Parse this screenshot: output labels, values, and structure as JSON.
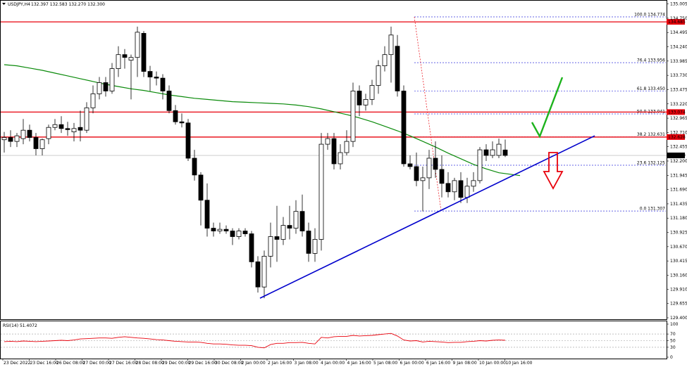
{
  "chart_data": {
    "type": "candlestick",
    "title": "USDJPY,H4 132.397 132.583 132.270 132.300",
    "symbol_header": "USDJPY,H4",
    "ohlc_header": "132.397 132.583 132.270 132.300",
    "price_axis": {
      "range": [
        129.4,
        135.0
      ],
      "ticks": [
        "135.005",
        "134.750",
        "134.495",
        "134.240",
        "133.985",
        "133.730",
        "133.475",
        "133.220",
        "132.965",
        "132.710",
        "132.455",
        "132.200",
        "131.945",
        "131.690",
        "131.435",
        "131.180",
        "130.925",
        "130.670",
        "130.415",
        "130.160",
        "129.910",
        "129.655",
        "129.400"
      ]
    },
    "x_axis_ticks": [
      "23 Dec 2022",
      "23 Dec 16:00",
      "26 Dec 08:00",
      "27 Dec 00:00",
      "27 Dec 16:00",
      "28 Dec 08:00",
      "29 Dec 00:00",
      "29 Dec 16:00",
      "30 Dec 08:00",
      "2 Jan 00:00",
      "2 Jan 16:00",
      "3 Jan 08:00",
      "4 Jan 00:00",
      "4 Jan 16:00",
      "5 Jan 08:00",
      "6 Jan 00:00",
      "6 Jan 16:00",
      "9 Jan 08:00",
      "10 Jan 00:00",
      "10 Jan 16:00"
    ],
    "current_price": "132.300",
    "candles": [
      {
        "o": 132.58,
        "h": 132.72,
        "l": 132.35,
        "c": 132.62
      },
      {
        "o": 132.62,
        "h": 132.75,
        "l": 132.45,
        "c": 132.55
      },
      {
        "o": 132.55,
        "h": 132.7,
        "l": 132.45,
        "c": 132.65
      },
      {
        "o": 132.6,
        "h": 132.95,
        "l": 132.5,
        "c": 132.75
      },
      {
        "o": 132.75,
        "h": 132.85,
        "l": 132.55,
        "c": 132.62
      },
      {
        "o": 132.62,
        "h": 132.7,
        "l": 132.3,
        "c": 132.42
      },
      {
        "o": 132.42,
        "h": 132.6,
        "l": 132.3,
        "c": 132.58
      },
      {
        "o": 132.6,
        "h": 132.85,
        "l": 132.5,
        "c": 132.8
      },
      {
        "o": 132.8,
        "h": 132.95,
        "l": 132.75,
        "c": 132.85
      },
      {
        "o": 132.85,
        "h": 133.0,
        "l": 132.7,
        "c": 132.78
      },
      {
        "o": 132.78,
        "h": 132.9,
        "l": 132.65,
        "c": 132.76
      },
      {
        "o": 132.72,
        "h": 132.88,
        "l": 132.55,
        "c": 132.78
      },
      {
        "o": 132.8,
        "h": 133.1,
        "l": 132.55,
        "c": 132.75
      },
      {
        "o": 132.75,
        "h": 133.25,
        "l": 132.7,
        "c": 133.15
      },
      {
        "o": 133.15,
        "h": 133.55,
        "l": 133.05,
        "c": 133.4
      },
      {
        "o": 133.4,
        "h": 133.7,
        "l": 133.3,
        "c": 133.6
      },
      {
        "o": 133.6,
        "h": 133.7,
        "l": 133.35,
        "c": 133.45
      },
      {
        "o": 133.45,
        "h": 133.95,
        "l": 133.4,
        "c": 133.85
      },
      {
        "o": 133.85,
        "h": 134.25,
        "l": 133.7,
        "c": 134.1
      },
      {
        "o": 134.1,
        "h": 134.2,
        "l": 133.85,
        "c": 134.05
      },
      {
        "o": 134.0,
        "h": 134.1,
        "l": 133.3,
        "c": 134.05
      },
      {
        "o": 134.05,
        "h": 134.6,
        "l": 133.7,
        "c": 134.5
      },
      {
        "o": 134.48,
        "h": 134.52,
        "l": 133.7,
        "c": 133.8
      },
      {
        "o": 133.8,
        "h": 133.9,
        "l": 133.45,
        "c": 133.7
      },
      {
        "o": 133.7,
        "h": 133.8,
        "l": 133.55,
        "c": 133.68
      },
      {
        "o": 133.68,
        "h": 133.75,
        "l": 133.3,
        "c": 133.45
      },
      {
        "o": 133.45,
        "h": 133.55,
        "l": 133.05,
        "c": 133.1
      },
      {
        "o": 133.1,
        "h": 133.2,
        "l": 132.85,
        "c": 132.9
      },
      {
        "o": 132.9,
        "h": 133.05,
        "l": 132.8,
        "c": 132.88
      },
      {
        "o": 132.88,
        "h": 132.95,
        "l": 132.2,
        "c": 132.25
      },
      {
        "o": 132.25,
        "h": 132.4,
        "l": 131.85,
        "c": 131.95
      },
      {
        "o": 131.95,
        "h": 132.0,
        "l": 131.05,
        "c": 131.5
      },
      {
        "o": 131.5,
        "h": 131.8,
        "l": 130.85,
        "c": 131.0
      },
      {
        "o": 131.0,
        "h": 131.1,
        "l": 130.85,
        "c": 130.95
      },
      {
        "o": 130.95,
        "h": 131.1,
        "l": 130.9,
        "c": 130.98
      },
      {
        "o": 130.98,
        "h": 131.05,
        "l": 130.9,
        "c": 130.95
      },
      {
        "o": 130.95,
        "h": 131.0,
        "l": 130.7,
        "c": 130.85
      },
      {
        "o": 130.85,
        "h": 131.0,
        "l": 130.8,
        "c": 130.95
      },
      {
        "o": 130.95,
        "h": 131.0,
        "l": 130.85,
        "c": 130.9
      },
      {
        "o": 130.9,
        "h": 130.95,
        "l": 130.3,
        "c": 130.4
      },
      {
        "o": 130.4,
        "h": 130.5,
        "l": 129.85,
        "c": 129.95
      },
      {
        "o": 129.95,
        "h": 130.6,
        "l": 129.75,
        "c": 130.5
      },
      {
        "o": 130.5,
        "h": 131.1,
        "l": 130.3,
        "c": 130.85
      },
      {
        "o": 130.85,
        "h": 131.4,
        "l": 130.4,
        "c": 130.8
      },
      {
        "o": 130.8,
        "h": 131.2,
        "l": 130.7,
        "c": 131.05
      },
      {
        "o": 131.05,
        "h": 131.4,
        "l": 130.8,
        "c": 131.0
      },
      {
        "o": 131.0,
        "h": 131.5,
        "l": 130.9,
        "c": 131.3
      },
      {
        "o": 131.3,
        "h": 131.6,
        "l": 130.85,
        "c": 130.95
      },
      {
        "o": 130.95,
        "h": 131.1,
        "l": 130.4,
        "c": 130.55
      },
      {
        "o": 130.55,
        "h": 131.0,
        "l": 130.4,
        "c": 130.8
      },
      {
        "o": 130.8,
        "h": 132.7,
        "l": 130.6,
        "c": 132.5
      },
      {
        "o": 132.5,
        "h": 132.7,
        "l": 132.4,
        "c": 132.6
      },
      {
        "o": 132.6,
        "h": 132.7,
        "l": 132.05,
        "c": 132.15
      },
      {
        "o": 132.15,
        "h": 132.5,
        "l": 132.05,
        "c": 132.35
      },
      {
        "o": 132.35,
        "h": 132.75,
        "l": 132.3,
        "c": 132.55
      },
      {
        "o": 132.55,
        "h": 133.6,
        "l": 132.45,
        "c": 133.45
      },
      {
        "o": 133.45,
        "h": 133.55,
        "l": 133.0,
        "c": 133.2
      },
      {
        "o": 133.2,
        "h": 133.4,
        "l": 133.1,
        "c": 133.3
      },
      {
        "o": 133.3,
        "h": 133.65,
        "l": 133.2,
        "c": 133.55
      },
      {
        "o": 133.55,
        "h": 134.0,
        "l": 133.4,
        "c": 133.9
      },
      {
        "o": 133.9,
        "h": 134.25,
        "l": 133.8,
        "c": 134.1
      },
      {
        "o": 134.1,
        "h": 134.6,
        "l": 133.6,
        "c": 134.45
      },
      {
        "o": 134.25,
        "h": 134.45,
        "l": 133.35,
        "c": 133.45
      },
      {
        "o": 133.45,
        "h": 133.55,
        "l": 132.1,
        "c": 132.15
      },
      {
        "o": 132.15,
        "h": 132.3,
        "l": 132.05,
        "c": 132.1
      },
      {
        "o": 132.1,
        "h": 132.35,
        "l": 131.75,
        "c": 131.85
      },
      {
        "o": 131.85,
        "h": 132.1,
        "l": 131.3,
        "c": 131.9
      },
      {
        "o": 131.9,
        "h": 132.4,
        "l": 131.7,
        "c": 132.25
      },
      {
        "o": 132.25,
        "h": 132.55,
        "l": 131.9,
        "c": 132.05
      },
      {
        "o": 132.05,
        "h": 132.3,
        "l": 131.55,
        "c": 131.8
      },
      {
        "o": 131.8,
        "h": 132.0,
        "l": 131.55,
        "c": 131.65
      },
      {
        "o": 131.65,
        "h": 131.9,
        "l": 131.5,
        "c": 131.85
      },
      {
        "o": 131.85,
        "h": 132.0,
        "l": 131.45,
        "c": 131.55
      },
      {
        "o": 131.55,
        "h": 131.9,
        "l": 131.45,
        "c": 131.75
      },
      {
        "o": 131.75,
        "h": 132.0,
        "l": 131.65,
        "c": 131.85
      },
      {
        "o": 131.85,
        "h": 132.45,
        "l": 131.8,
        "c": 132.4
      },
      {
        "o": 132.4,
        "h": 132.5,
        "l": 132.2,
        "c": 132.3
      },
      {
        "o": 132.3,
        "h": 132.55,
        "l": 132.25,
        "c": 132.4
      },
      {
        "o": 132.3,
        "h": 132.6,
        "l": 132.25,
        "c": 132.5
      },
      {
        "o": 132.397,
        "h": 132.583,
        "l": 132.27,
        "c": 132.3
      }
    ],
    "moving_average": [
      133.92,
      133.9,
      133.86,
      133.82,
      133.77,
      133.72,
      133.67,
      133.62,
      133.57,
      133.53,
      133.49,
      133.46,
      133.42,
      133.38,
      133.35,
      133.32,
      133.3,
      133.28,
      133.26,
      133.25,
      133.24,
      133.23,
      133.22,
      133.2,
      133.17,
      133.13,
      133.08,
      133.03,
      132.97,
      132.9,
      132.82,
      132.74,
      132.65,
      132.55,
      132.45,
      132.34,
      132.24,
      132.14,
      132.06,
      131.99,
      131.94
    ],
    "horizontal_levels": [
      {
        "price": 134.685,
        "label": "134.685",
        "color": "#e8000b"
      },
      {
        "price": 133.074,
        "label": "133.074",
        "color": "#e8000b"
      },
      {
        "price": 132.628,
        "label": "132.628",
        "color": "#e8000b"
      }
    ],
    "fibonacci_levels": [
      {
        "ratio": "100.0",
        "price": 134.774
      },
      {
        "ratio": "76.4",
        "price": 133.956
      },
      {
        "ratio": "61.8",
        "price": 133.45
      },
      {
        "ratio": "50.0",
        "price": 133.041
      },
      {
        "ratio": "38.2",
        "price": 132.631
      },
      {
        "ratio": "23.6",
        "price": 132.125
      },
      {
        "ratio": "0.0",
        "price": 131.307
      }
    ],
    "trendline": {
      "from": {
        "candle": 41,
        "price": 129.75
      },
      "to": {
        "candle": 94,
        "price": 132.65
      },
      "color": "#0000cc"
    },
    "rsi": {
      "label": "RSI(14) 51.4072",
      "ticks": [
        "100",
        "70",
        "50",
        "30",
        "0"
      ],
      "levels": [
        70,
        50,
        30
      ],
      "values": [
        47,
        48,
        47,
        49,
        48,
        47,
        48,
        49,
        50,
        51,
        50,
        52,
        55,
        56,
        57,
        58,
        58,
        57,
        60,
        62,
        60,
        58,
        57,
        55,
        53,
        52,
        50,
        48,
        47,
        46,
        46,
        45,
        42,
        40,
        40,
        39,
        37,
        36,
        36,
        35,
        30,
        28,
        38,
        42,
        42,
        44,
        44,
        45,
        42,
        40,
        60,
        58,
        62,
        63,
        63,
        66,
        64,
        65,
        66,
        68,
        70,
        72,
        64,
        52,
        49,
        50,
        46,
        48,
        47,
        46,
        44,
        45,
        45,
        47,
        48,
        50,
        49,
        51,
        52,
        51
      ]
    },
    "annotation_colors": {
      "bull_arrow": "#1db31d",
      "bear_arrow": "#e8000b",
      "fib_line": "#3333dd",
      "ma": "#0a8a0a",
      "candle": "#000000",
      "rsi": "#e8000b"
    }
  }
}
